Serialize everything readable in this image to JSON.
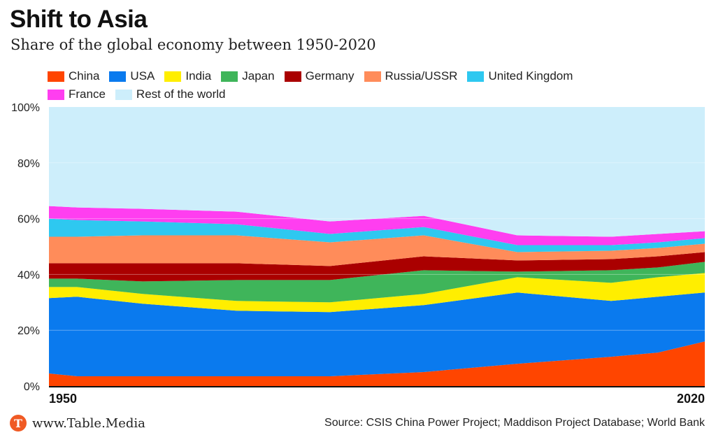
{
  "header": {
    "title": "Shift to Asia",
    "subtitle": "Share of the global economy between 1950-2020"
  },
  "footer": {
    "logo_letter": "T",
    "site": "www.Table.Media",
    "source": "Source: CSIS China Power Project; Maddison Project Database; World Bank"
  },
  "chart_data": {
    "type": "area",
    "stacked": true,
    "x": [
      1950,
      1953,
      1960,
      1970,
      1980,
      1990,
      2000,
      2010,
      2015,
      2020
    ],
    "xlabels": [
      "1950",
      "2020"
    ],
    "ylim": [
      0,
      100
    ],
    "yticks": [
      "0%",
      "20%",
      "40%",
      "60%",
      "80%",
      "100%"
    ],
    "series": [
      {
        "name": "China",
        "color": "#ff4500",
        "values": [
          4.5,
          3.5,
          3.5,
          3.5,
          3.5,
          5.0,
          8.0,
          10.5,
          12.0,
          16.0
        ]
      },
      {
        "name": "USA",
        "color": "#0a7aee",
        "values": [
          27.0,
          28.5,
          26.0,
          23.5,
          23.0,
          24.0,
          25.5,
          20.0,
          20.0,
          17.5
        ]
      },
      {
        "name": "India",
        "color": "#ffee00",
        "values": [
          4.0,
          3.5,
          3.5,
          3.5,
          3.5,
          4.0,
          5.5,
          6.5,
          7.0,
          7.0
        ]
      },
      {
        "name": "Japan",
        "color": "#3fb55a",
        "values": [
          3.0,
          3.0,
          4.5,
          7.5,
          8.0,
          8.5,
          2.0,
          4.5,
          3.5,
          4.0
        ]
      },
      {
        "name": "Germany",
        "color": "#aa0000",
        "values": [
          5.5,
          5.5,
          6.5,
          6.0,
          5.0,
          5.0,
          4.0,
          4.0,
          4.0,
          3.5
        ]
      },
      {
        "name": "Russia/USSR",
        "color": "#ff8c5a",
        "values": [
          9.5,
          9.5,
          10.0,
          10.0,
          8.5,
          7.5,
          3.0,
          3.0,
          3.0,
          3.0
        ]
      },
      {
        "name": "United Kingdom",
        "color": "#2ec8f0",
        "values": [
          6.5,
          6.0,
          5.0,
          4.0,
          3.0,
          3.0,
          2.5,
          2.0,
          2.0,
          2.0
        ]
      },
      {
        "name": "France",
        "color": "#ff3ef0",
        "values": [
          4.5,
          4.5,
          4.5,
          4.5,
          4.5,
          4.0,
          3.5,
          3.0,
          3.0,
          2.5
        ]
      },
      {
        "name": "Rest of the world",
        "color": "#cdeefb",
        "values": [
          35.5,
          36.0,
          36.5,
          37.5,
          41.0,
          39.0,
          46.0,
          46.5,
          45.5,
          44.5
        ]
      }
    ]
  }
}
